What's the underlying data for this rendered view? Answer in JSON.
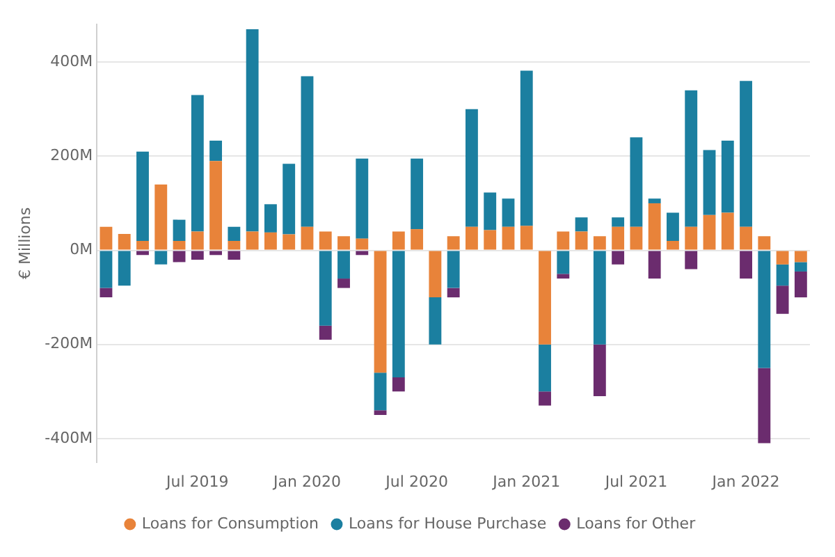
{
  "chart_data": {
    "type": "bar",
    "stacked": true,
    "ylabel": "€ Millions",
    "categories": [
      null,
      null,
      null,
      null,
      null,
      "Jul 2019",
      null,
      null,
      null,
      null,
      null,
      "Jan 2020",
      null,
      null,
      null,
      null,
      null,
      "Jul 2020",
      null,
      null,
      null,
      null,
      null,
      "Jan 2021",
      null,
      null,
      null,
      null,
      null,
      "Jul 2021",
      null,
      null,
      null,
      null,
      null,
      "Jan 2022",
      null,
      null,
      null
    ],
    "series": [
      {
        "name": "Loans for Consumption",
        "color": "#e8833a",
        "values": [
          50,
          35,
          20,
          140,
          20,
          40,
          190,
          20,
          40,
          38,
          34,
          50,
          40,
          30,
          25,
          -260,
          40,
          45,
          -100,
          30,
          50,
          43,
          50,
          52,
          -200,
          40,
          40,
          30,
          50,
          50,
          100,
          20,
          50,
          75,
          80,
          50,
          30,
          -30,
          -25
        ]
      },
      {
        "name": "Loans for House Purchase",
        "color": "#1b7fa0",
        "values": [
          -80,
          -75,
          190,
          -30,
          45,
          290,
          43,
          30,
          430,
          60,
          150,
          320,
          -160,
          -60,
          170,
          -80,
          -270,
          150,
          -100,
          -80,
          250,
          80,
          60,
          330,
          -100,
          -50,
          30,
          -200,
          20,
          190,
          10,
          60,
          290,
          138,
          153,
          310,
          -250,
          -45,
          -20
        ]
      },
      {
        "name": "Loans for Other",
        "color": "#6b2c6e",
        "values": [
          -20,
          0,
          -10,
          0,
          -25,
          -20,
          -10,
          -20,
          0,
          0,
          0,
          0,
          -30,
          -20,
          -10,
          -10,
          -30,
          0,
          0,
          -20,
          0,
          0,
          0,
          0,
          -30,
          -10,
          0,
          -110,
          -30,
          0,
          -60,
          0,
          -40,
          0,
          0,
          -60,
          -160,
          -60,
          -55
        ]
      }
    ],
    "ylim": [
      -450,
      480
    ],
    "yticks": [
      {
        "value": -400,
        "label": "-400M"
      },
      {
        "value": -200,
        "label": "-200M"
      },
      {
        "value": 0,
        "label": "0M"
      },
      {
        "value": 200,
        "label": "200M"
      },
      {
        "value": 400,
        "label": "400M"
      }
    ],
    "grid": "y",
    "legend": "bottom",
    "marker": "circle"
  }
}
